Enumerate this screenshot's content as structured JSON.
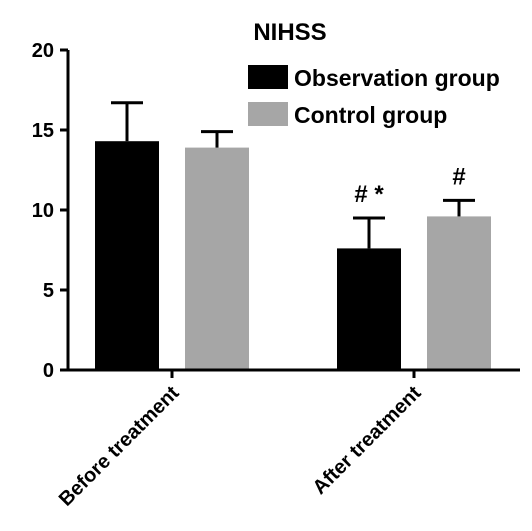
{
  "chart_data": {
    "type": "bar",
    "title": "NIHSS",
    "xlabel": "",
    "ylabel": "",
    "categories": [
      "Before treatment",
      "After treatment"
    ],
    "series": [
      {
        "name": "Observation group",
        "values": [
          14.3,
          7.6
        ],
        "errors": [
          2.4,
          1.9
        ]
      },
      {
        "name": "Control group",
        "values": [
          13.9,
          9.6
        ],
        "errors": [
          1.0,
          1.0
        ]
      }
    ],
    "ylim": [
      0,
      20
    ],
    "yticks": [
      0,
      5,
      10,
      15,
      20
    ],
    "grid": false,
    "legend": "top-right",
    "error_bars": "upper",
    "annotations": [
      {
        "category": 1,
        "series": 0,
        "text": "# *"
      },
      {
        "category": 1,
        "series": 1,
        "text": "#"
      }
    ],
    "colors": {
      "Observation group": "#000000",
      "Control group": "#a6a6a6"
    }
  }
}
